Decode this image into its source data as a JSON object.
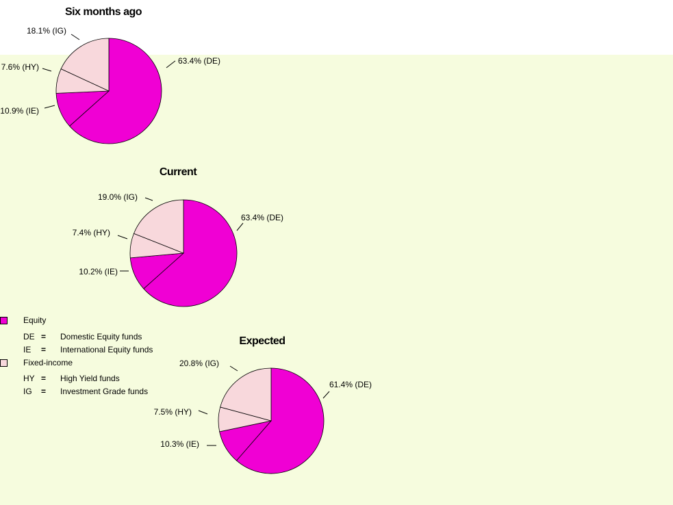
{
  "colors": {
    "equity": "#f000d4",
    "fixed_income": "#f8d8dc",
    "background": "#f6fcde"
  },
  "chart_data": [
    {
      "type": "pie",
      "title": "Six months ago",
      "slices": [
        {
          "code": "DE",
          "value": 63.4,
          "label": "63.4% (DE)",
          "group": "equity"
        },
        {
          "code": "IE",
          "value": 10.9,
          "label": "10.9% (IE)",
          "group": "equity"
        },
        {
          "code": "HY",
          "value": 7.6,
          "label": "7.6% (HY)",
          "group": "fixed_income"
        },
        {
          "code": "IG",
          "value": 18.1,
          "label": "18.1% (IG)",
          "group": "fixed_income"
        }
      ]
    },
    {
      "type": "pie",
      "title": "Current",
      "slices": [
        {
          "code": "DE",
          "value": 63.4,
          "label": "63.4% (DE)",
          "group": "equity"
        },
        {
          "code": "IE",
          "value": 10.2,
          "label": "10.2% (IE)",
          "group": "equity"
        },
        {
          "code": "HY",
          "value": 7.4,
          "label": "7.4% (HY)",
          "group": "fixed_income"
        },
        {
          "code": "IG",
          "value": 19.0,
          "label": "19.0% (IG)",
          "group": "fixed_income"
        }
      ]
    },
    {
      "type": "pie",
      "title": "Expected",
      "slices": [
        {
          "code": "DE",
          "value": 61.4,
          "label": "61.4% (DE)",
          "group": "equity"
        },
        {
          "code": "IE",
          "value": 10.3,
          "label": "10.3% (IE)",
          "group": "equity"
        },
        {
          "code": "HY",
          "value": 7.5,
          "label": "7.5% (HY)",
          "group": "fixed_income"
        },
        {
          "code": "IG",
          "value": 20.8,
          "label": "20.8% (IG)",
          "group": "fixed_income"
        }
      ]
    }
  ],
  "legend": {
    "equity_label": "Equity",
    "fixed_income_label": "Fixed-income",
    "equals": "=",
    "entries": {
      "DE": {
        "abbr": "DE",
        "desc": "Domestic Equity funds"
      },
      "IE": {
        "abbr": "IE",
        "desc": "International Equity funds"
      },
      "HY": {
        "abbr": "HY",
        "desc": "High Yield funds"
      },
      "IG": {
        "abbr": "IG",
        "desc": "Investment Grade funds"
      }
    }
  }
}
